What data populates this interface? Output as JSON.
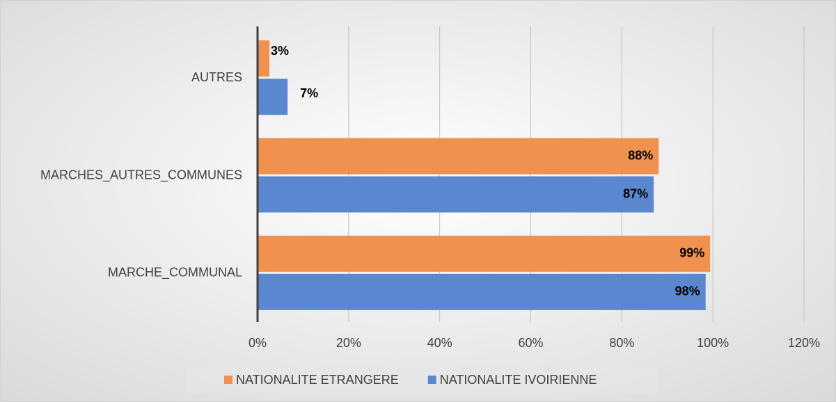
{
  "chart_data": {
    "type": "bar",
    "orientation": "horizontal",
    "categories": [
      "AUTRES",
      "MARCHES_AUTRES_COMMUNES",
      "MARCHE_COMMUNAL"
    ],
    "series": [
      {
        "name": "NATIONALITE ETRANGERE",
        "color": "#f0914f",
        "values": [
          2.6,
          88.1,
          99.4
        ],
        "value_labels": [
          "3%",
          "88%",
          "99%"
        ]
      },
      {
        "name": "NATIONALITE IVOIRIENNE",
        "color": "#5b86d0",
        "values": [
          6.6,
          87.0,
          98.4
        ],
        "value_labels": [
          "7%",
          "87%",
          "98%"
        ]
      }
    ],
    "xlim": [
      0,
      120
    ],
    "xticks": [
      {
        "value": 0,
        "label": "0%"
      },
      {
        "value": 20,
        "label": "20%"
      },
      {
        "value": 40,
        "label": "40%"
      },
      {
        "value": 60,
        "label": "60%"
      },
      {
        "value": 80,
        "label": "80%"
      },
      {
        "value": 100,
        "label": "100%"
      },
      {
        "value": 120,
        "label": "120%"
      }
    ],
    "grid": true,
    "legend": "bottom"
  }
}
